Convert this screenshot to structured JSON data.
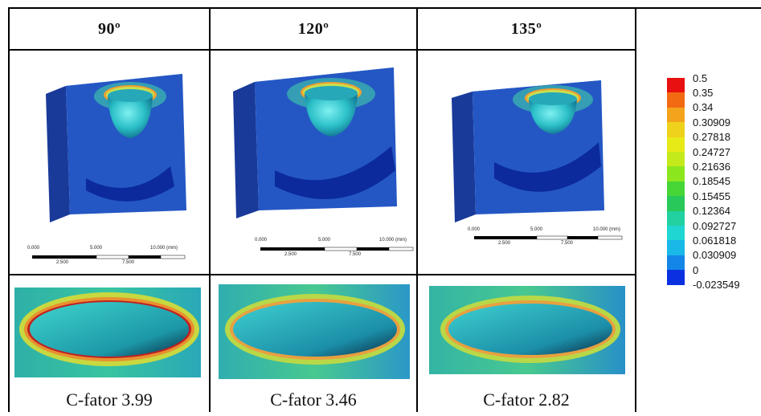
{
  "columns": [
    {
      "angle": "90º",
      "caption": "C-fator 3.99"
    },
    {
      "angle": "120º",
      "caption": "C-fator 3.46"
    },
    {
      "angle": "135º",
      "caption": "C-fator 2.82"
    }
  ],
  "scale_bar": {
    "top_labels": [
      "0.000",
      "5.000",
      "10.000 (mm)"
    ],
    "bottom_labels": [
      "2.500",
      "7.500"
    ]
  },
  "legend": {
    "labels": [
      "0.5",
      "0.35",
      "0.34",
      "0.30909",
      "0.27818",
      "0.24727",
      "0.21636",
      "0.18545",
      "0.15455",
      "0.12364",
      "0.092727",
      "0.061818",
      "0.030909",
      "0",
      "-0.023549"
    ],
    "colors": [
      "#e81010",
      "#f26a12",
      "#f4a41c",
      "#eed21c",
      "#e8ea18",
      "#c4ea1c",
      "#8ce61e",
      "#46d636",
      "#28c85a",
      "#22d0a0",
      "#20d6d2",
      "#1ab8e8",
      "#1486e8",
      "#0a30e0"
    ]
  }
}
